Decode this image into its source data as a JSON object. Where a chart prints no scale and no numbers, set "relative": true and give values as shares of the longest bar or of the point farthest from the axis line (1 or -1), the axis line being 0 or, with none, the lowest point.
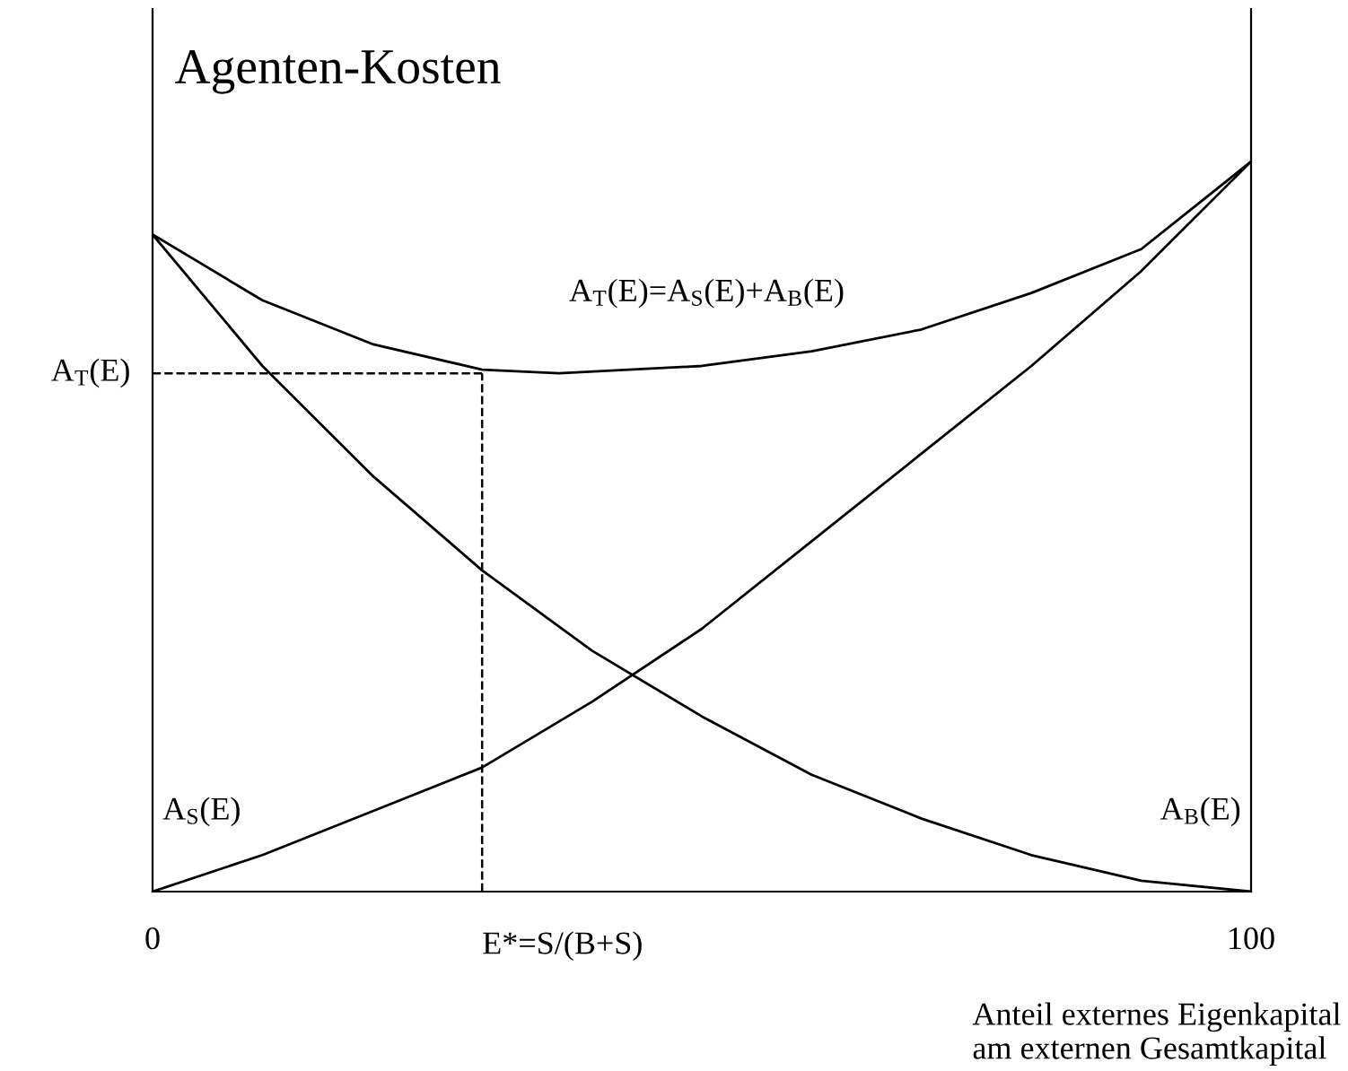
{
  "chart_data": {
    "type": "line",
    "title": "Agenten-Kosten",
    "xlabel": "Anteil externes Eigenkapital\nam externen Gesamtkapital",
    "relative": true,
    "xlim": [
      0,
      100
    ],
    "xticks": [
      0,
      100
    ],
    "tick_labels": "x",
    "grid": false,
    "line_style": "solid",
    "marker": "none",
    "color": "#000000",
    "series": [
      {
        "name": "A$_{T}$(E)=A$_{S}$(E)+A$_{B}$(E)",
        "x": [
          0,
          10,
          20,
          30,
          37,
          50,
          60,
          70,
          80,
          90,
          100
        ],
        "values": [
          0.9,
          0.81,
          0.75,
          0.715,
          0.71,
          0.72,
          0.74,
          0.77,
          0.82,
          0.88,
          1.0
        ]
      },
      {
        "name": "A$_{S}$(E)",
        "x": [
          0,
          10,
          20,
          30,
          40,
          50,
          60,
          70,
          80,
          90,
          100
        ],
        "values": [
          0,
          0.05,
          0.11,
          0.17,
          0.26,
          0.36,
          0.48,
          0.6,
          0.72,
          0.85,
          1.0
        ]
      },
      {
        "name": "A$_{B}$(E)",
        "x": [
          0,
          10,
          20,
          30,
          40,
          50,
          60,
          70,
          80,
          90,
          100
        ],
        "values": [
          0.9,
          0.72,
          0.57,
          0.44,
          0.33,
          0.24,
          0.16,
          0.1,
          0.05,
          0.015,
          0
        ]
      }
    ],
    "ref_lines": [
      {
        "axis": "y",
        "value": 0.71,
        "label": "A$_{T}$(E)",
        "line_style": "dashed"
      },
      {
        "axis": "x",
        "value": 30,
        "label": "E*=S/(B+S)",
        "line_style": "dashed"
      }
    ]
  }
}
